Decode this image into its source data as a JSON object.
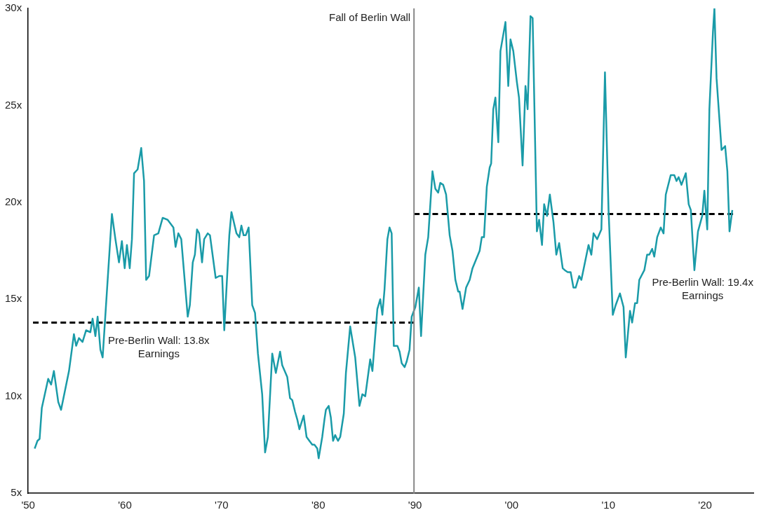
{
  "chart_data": {
    "type": "line",
    "marker": "none",
    "xlim": [
      1950,
      2025
    ],
    "xticks": [
      {
        "value": 1950,
        "label": "'50"
      },
      {
        "value": 1960,
        "label": "'60"
      },
      {
        "value": 1970,
        "label": "'70"
      },
      {
        "value": 1980,
        "label": "'80"
      },
      {
        "value": 1990,
        "label": "'90"
      },
      {
        "value": 2000,
        "label": "'00"
      },
      {
        "value": 2010,
        "label": "'10"
      },
      {
        "value": 2020,
        "label": "'20"
      }
    ],
    "ylim": [
      5,
      30
    ],
    "yticks": [
      {
        "value": 5,
        "label": "5x"
      },
      {
        "value": 10,
        "label": "10x"
      },
      {
        "value": 15,
        "label": "15x"
      },
      {
        "value": 20,
        "label": "20x"
      },
      {
        "value": 25,
        "label": "25x"
      },
      {
        "value": 30,
        "label": "30x"
      }
    ],
    "series": [
      {
        "color": "#1a9ba8",
        "line_style": "solid",
        "x": [
          1950.67,
          1950.96,
          1951.18,
          1951.41,
          1952.07,
          1952.37,
          1952.66,
          1953.11,
          1953.4,
          1954.22,
          1954.73,
          1954.96,
          1955.25,
          1955.62,
          1955.99,
          1956.43,
          1956.66,
          1956.95,
          1957.18,
          1957.47,
          1957.7,
          1958.66,
          1959.02,
          1959.39,
          1959.69,
          1959.98,
          1960.21,
          1960.5,
          1960.73,
          1960.95,
          1961.32,
          1961.69,
          1961.98,
          1962.2,
          1962.5,
          1963.02,
          1963.46,
          1963.91,
          1964.42,
          1965.02,
          1965.24,
          1965.53,
          1965.83,
          1966.5,
          1966.72,
          1967.02,
          1967.24,
          1967.46,
          1967.68,
          1967.98,
          1968.2,
          1968.57,
          1968.8,
          1969.39,
          1969.76,
          1970.06,
          1970.28,
          1970.8,
          1971.02,
          1971.54,
          1971.83,
          1972.05,
          1972.28,
          1972.5,
          1972.8,
          1973.17,
          1973.46,
          1973.76,
          1974.2,
          1974.5,
          1974.79,
          1975.24,
          1975.61,
          1976.05,
          1976.27,
          1976.79,
          1977.08,
          1977.31,
          1977.6,
          1977.83,
          1978.05,
          1978.49,
          1978.79,
          1979.08,
          1979.38,
          1979.6,
          1979.9,
          1980.04,
          1980.41,
          1980.64,
          1980.79,
          1981.08,
          1981.3,
          1981.53,
          1981.75,
          1982.04,
          1982.27,
          1982.64,
          1982.86,
          1983.3,
          1983.82,
          1984.26,
          1984.56,
          1984.86,
          1985.37,
          1985.6,
          1986.11,
          1986.41,
          1986.63,
          1986.85,
          1987.15,
          1987.37,
          1987.59,
          1987.81,
          1988.18,
          1988.41,
          1988.63,
          1988.93,
          1989.15,
          1989.44,
          1989.66,
          1990.04,
          1990.4,
          1990.63,
          1991.07,
          1991.37,
          1991.81,
          1992.11,
          1992.4,
          1992.62,
          1992.92,
          1993.22,
          1993.59,
          1993.88,
          1994.18,
          1994.47,
          1994.62,
          1994.92,
          1995.29,
          1995.66,
          1995.95,
          1996.69,
          1996.91,
          1997.14,
          1997.43,
          1997.73,
          1997.88,
          1998.1,
          1998.32,
          1998.62,
          1998.84,
          1999.36,
          1999.65,
          1999.88,
          2000.17,
          2000.54,
          2000.76,
          2001.13,
          2001.43,
          2001.65,
          2001.95,
          2002.17,
          2002.61,
          2002.84,
          2003.14,
          2003.36,
          2003.66,
          2003.95,
          2004.32,
          2004.62,
          2004.91,
          2005.28,
          2005.5,
          2005.8,
          2006.1,
          2006.39,
          2006.62,
          2006.98,
          2007.21,
          2007.95,
          2008.24,
          2008.47,
          2008.84,
          2009.28,
          2009.65,
          2010.02,
          2010.46,
          2010.76,
          2011.2,
          2011.57,
          2011.8,
          2012.24,
          2012.46,
          2012.76,
          2012.98,
          2013.2,
          2013.72,
          2014.01,
          2014.24,
          2014.53,
          2014.75,
          2015.05,
          2015.42,
          2015.71,
          2015.94,
          2016.45,
          2016.82,
          2017.05,
          2017.27,
          2017.56,
          2018.01,
          2018.31,
          2018.53,
          2018.9,
          2019.27,
          2019.71,
          2019.93,
          2020.23,
          2020.45,
          2020.82,
          2020.97,
          2021.19,
          2021.71,
          2022.08,
          2022.31,
          2022.53,
          2022.82
        ],
        "values": [
          7.3,
          7.7,
          7.8,
          9.4,
          10.9,
          10.6,
          11.3,
          9.7,
          9.3,
          11.3,
          13.2,
          12.6,
          13.0,
          12.8,
          13.4,
          13.3,
          14.0,
          13.1,
          14.1,
          12.4,
          12.0,
          19.4,
          18.1,
          16.9,
          18.0,
          16.6,
          17.8,
          16.6,
          18.1,
          21.5,
          21.7,
          22.8,
          21.1,
          16.0,
          16.2,
          18.3,
          18.4,
          19.2,
          19.1,
          18.7,
          17.7,
          18.4,
          18.1,
          14.1,
          14.7,
          16.9,
          17.3,
          18.6,
          18.4,
          16.9,
          18.1,
          18.4,
          18.3,
          16.1,
          16.2,
          16.2,
          13.4,
          18.3,
          19.5,
          18.4,
          18.2,
          18.8,
          18.3,
          18.3,
          18.7,
          14.7,
          14.3,
          12.2,
          10.1,
          7.1,
          7.9,
          12.2,
          11.2,
          12.3,
          11.6,
          11.0,
          9.9,
          9.8,
          9.2,
          8.8,
          8.3,
          9.0,
          7.9,
          7.7,
          7.5,
          7.5,
          7.3,
          6.8,
          7.9,
          8.8,
          9.3,
          9.5,
          8.9,
          7.7,
          8.0,
          7.7,
          7.9,
          9.1,
          11.2,
          13.6,
          12.0,
          9.5,
          10.1,
          10.0,
          11.9,
          11.3,
          14.5,
          15.0,
          14.2,
          15.5,
          18.1,
          18.7,
          18.4,
          12.6,
          12.6,
          12.3,
          11.7,
          11.5,
          11.8,
          12.4,
          14.1,
          14.6,
          15.6,
          13.1,
          17.3,
          18.2,
          21.6,
          20.7,
          20.5,
          21.0,
          20.9,
          20.4,
          18.3,
          17.5,
          16.0,
          15.4,
          15.4,
          14.5,
          15.6,
          16.0,
          16.6,
          17.5,
          18.2,
          18.2,
          20.8,
          21.8,
          22.0,
          24.8,
          25.4,
          23.1,
          27.8,
          29.3,
          26.0,
          28.4,
          27.8,
          26.2,
          25.4,
          21.9,
          26.0,
          24.8,
          29.6,
          29.5,
          18.5,
          19.1,
          17.8,
          19.9,
          19.3,
          20.4,
          19.0,
          17.3,
          17.9,
          16.6,
          16.5,
          16.4,
          16.4,
          15.6,
          15.6,
          16.2,
          16.0,
          17.8,
          17.3,
          18.4,
          18.1,
          18.6,
          26.7,
          19.6,
          14.2,
          14.7,
          15.3,
          14.6,
          12.0,
          14.4,
          13.8,
          14.8,
          14.8,
          16.0,
          16.5,
          17.3,
          17.3,
          17.6,
          17.2,
          18.2,
          18.7,
          18.4,
          20.4,
          21.4,
          21.4,
          21.1,
          21.3,
          20.9,
          21.5,
          19.9,
          19.6,
          16.5,
          18.5,
          19.3,
          20.6,
          18.6,
          24.8,
          28.8,
          30.0,
          26.4,
          22.7,
          22.9,
          21.6,
          18.5,
          19.6
        ]
      },
      {
        "color": "#000000",
        "line_style": "dashed",
        "x": [
          1950.5,
          1989.9
        ],
        "values": [
          13.8,
          13.8
        ]
      },
      {
        "color": "#000000",
        "line_style": "dashed",
        "x": [
          1989.9,
          2022.9
        ],
        "values": [
          19.4,
          19.4
        ]
      }
    ],
    "ref_lines": [
      {
        "axis": "x",
        "value": 1989.9,
        "label": "Fall of Berlin Wall",
        "color": "#888888",
        "line_style": "solid"
      }
    ],
    "annotations": [
      "Pre-Berlin Wall: 13.8x\nEarnings",
      "Pre-Berlin Wall: 19.4x\nEarnings"
    ]
  }
}
